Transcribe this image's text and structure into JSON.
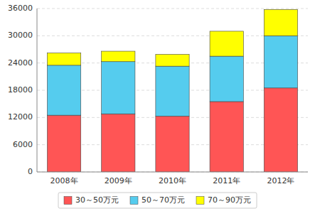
{
  "chart_data": {
    "type": "bar",
    "stacked": true,
    "categories": [
      "2008年",
      "2009年",
      "2010年",
      "2011年",
      "2012年"
    ],
    "series": [
      {
        "name": "30～50万元",
        "color": "#FF5555",
        "values": [
          12500,
          12800,
          12300,
          15500,
          18500
        ]
      },
      {
        "name": "50～70万元",
        "color": "#55CCEE",
        "values": [
          11000,
          11500,
          11000,
          10000,
          11500
        ]
      },
      {
        "name": "70～90万元",
        "color": "#FFFF00",
        "values": [
          2700,
          2300,
          2600,
          5500,
          5800
        ]
      }
    ],
    "ylim": [
      0,
      36000
    ],
    "yticks": [
      0,
      6000,
      12000,
      18000,
      24000,
      30000,
      36000
    ],
    "grid": true,
    "legend": "bottom"
  }
}
